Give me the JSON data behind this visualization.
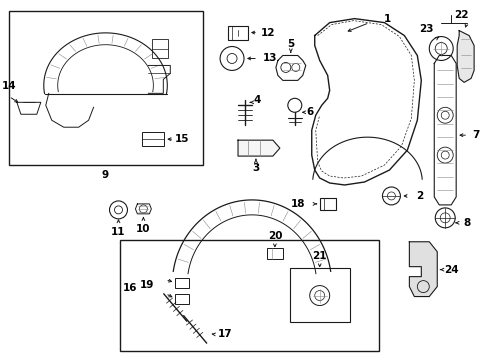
{
  "bg_color": "#ffffff",
  "line_color": "#1a1a1a",
  "label_color": "#000000",
  "fig_width": 4.9,
  "fig_height": 3.6,
  "dpi": 100,
  "lw": 0.8,
  "gray": "#cccccc",
  "dgray": "#888888"
}
